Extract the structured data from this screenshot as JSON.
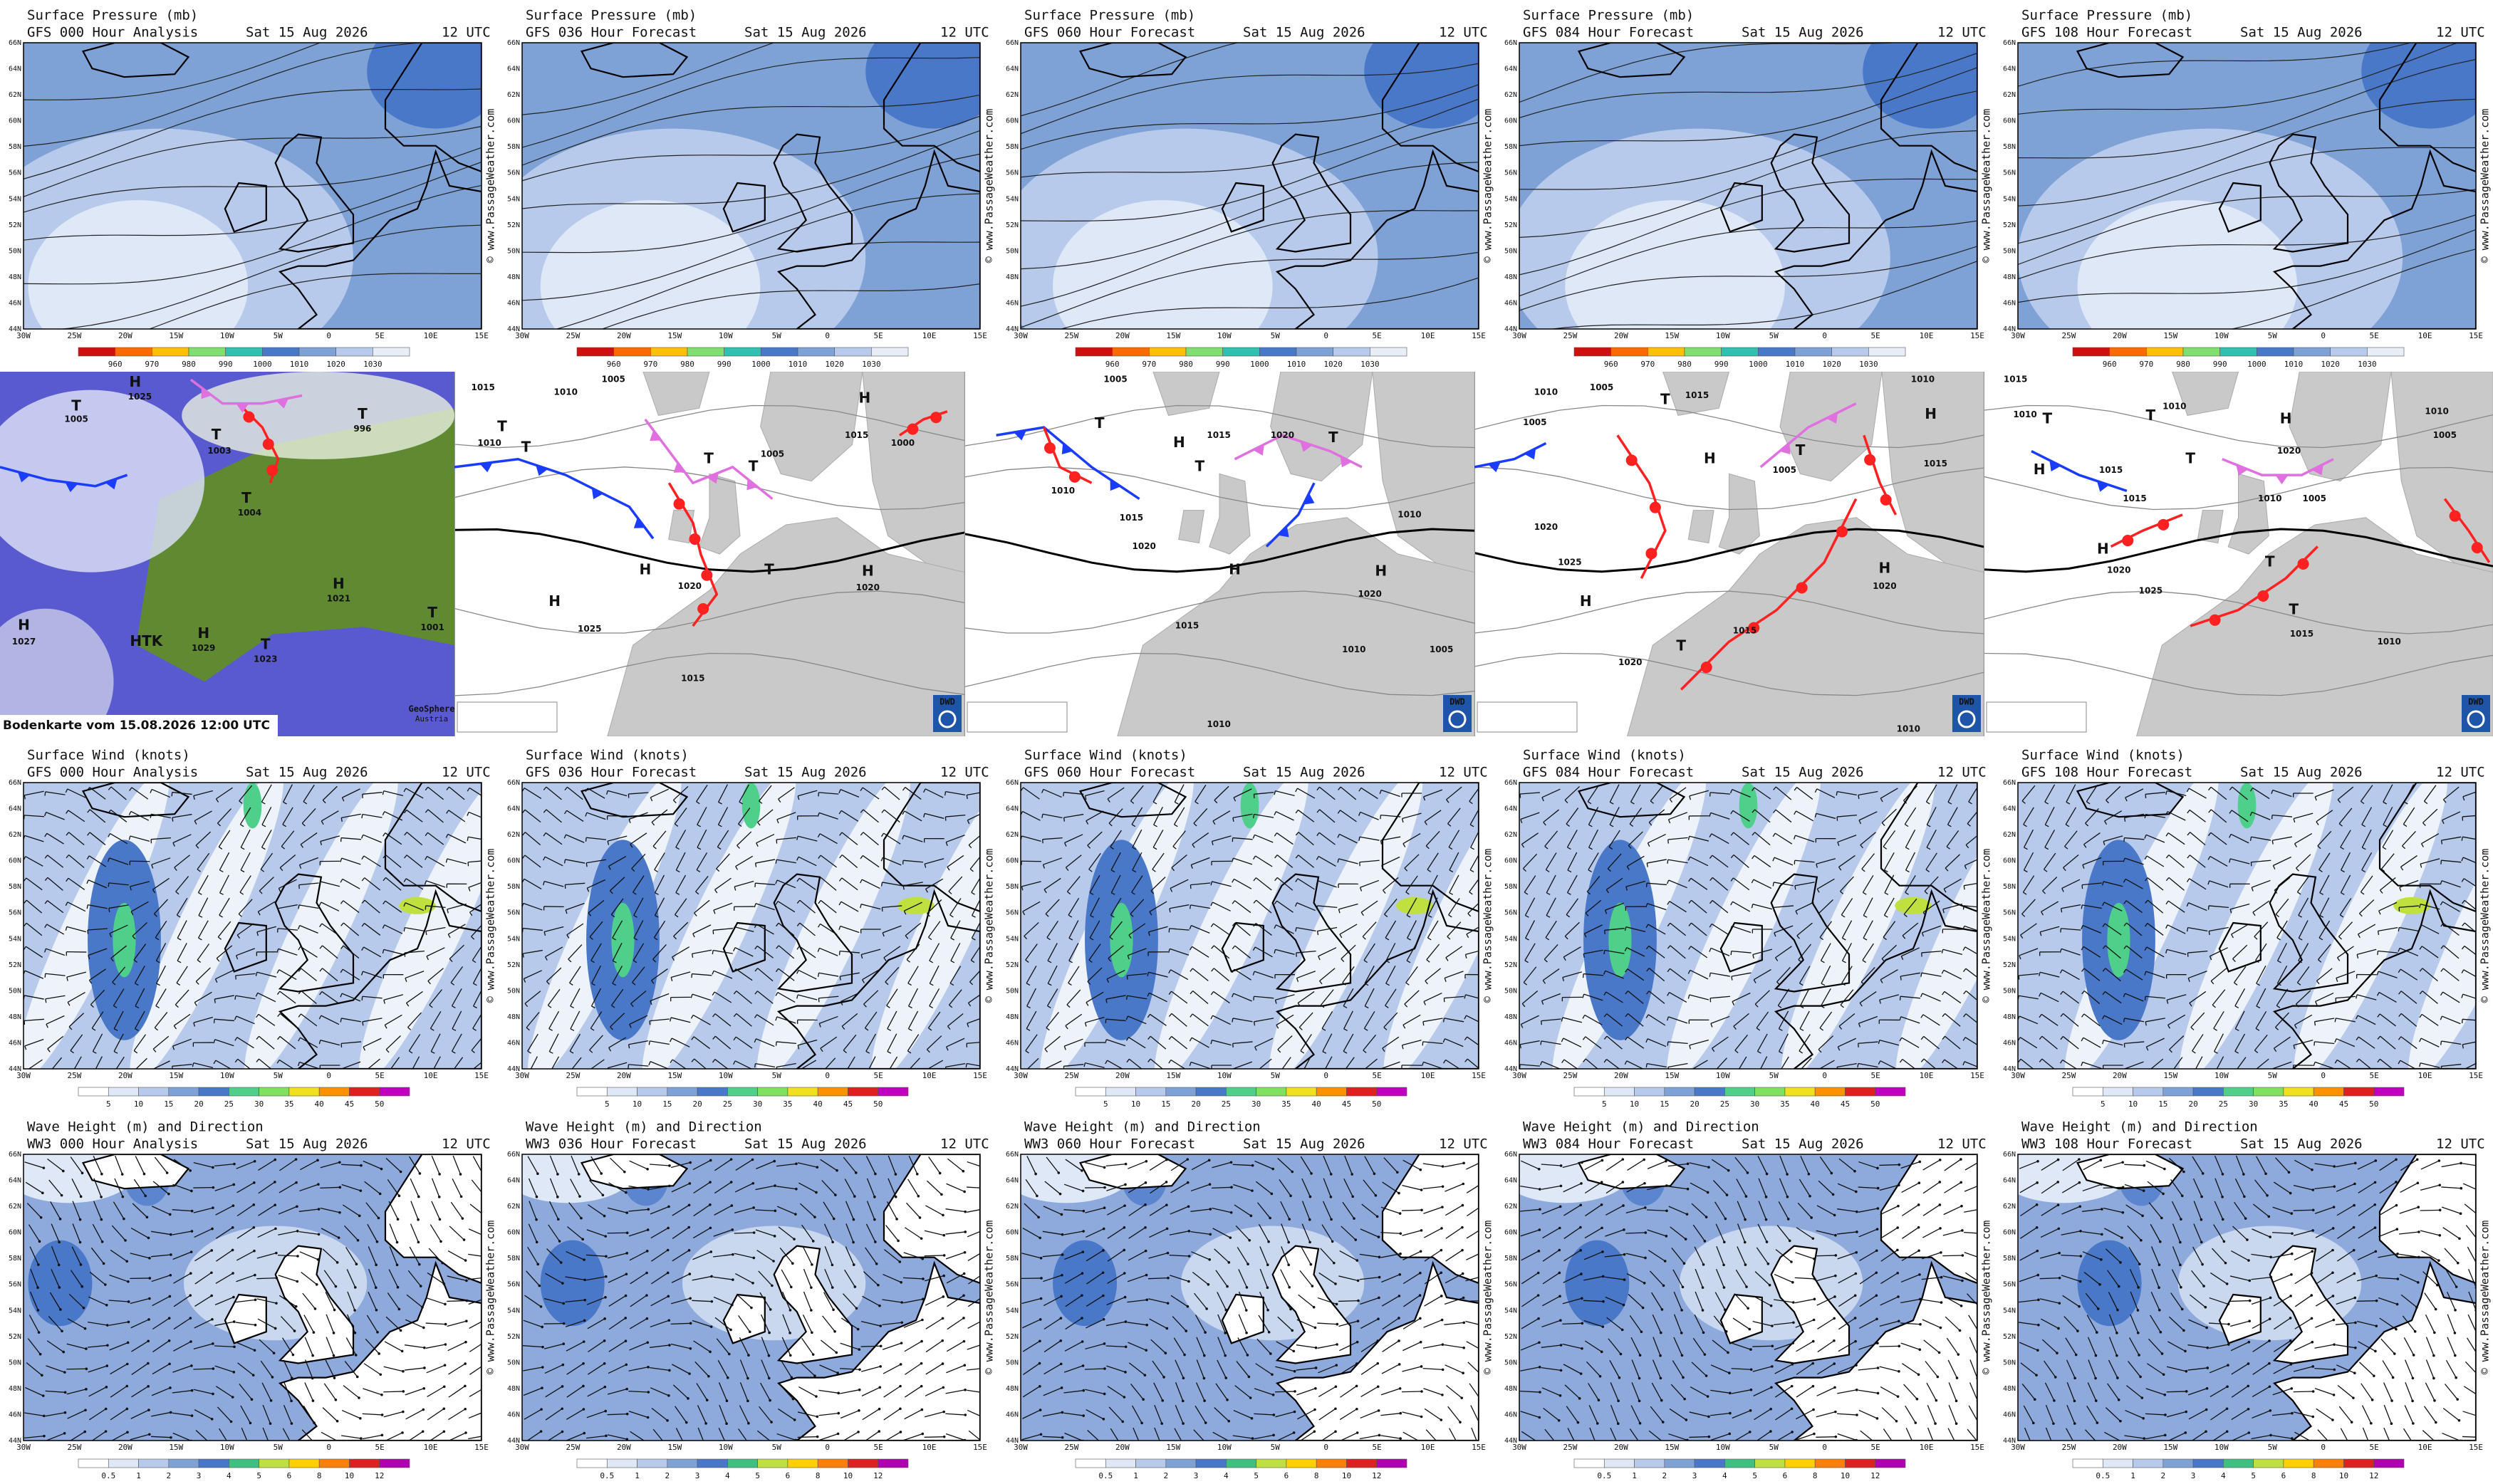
{
  "date": "Sat 15 Aug 2026",
  "time": "12 UTC",
  "watermark": "© www.PassageWeather.com",
  "lat_labels": [
    "66N",
    "64N",
    "62N",
    "60N",
    "58N",
    "56N",
    "54N",
    "52N",
    "50N",
    "48N",
    "46N",
    "44N"
  ],
  "lon_labels": [
    "30W",
    "25W",
    "20W",
    "15W",
    "10W",
    "5W",
    0,
    "5E",
    "10E",
    "15E"
  ],
  "map_rows": [
    {
      "title": "Surface Pressure (mb)",
      "panels": [
        {
          "model": "GFS 000 Hour Analysis"
        },
        {
          "model": "GFS 036 Hour Forecast"
        },
        {
          "model": "GFS 060 Hour Forecast"
        },
        {
          "model": "GFS 084 Hour Forecast"
        },
        {
          "model": "GFS 108 Hour Forecast"
        }
      ],
      "colorbar": [
        960,
        970,
        980,
        990,
        1000,
        1010,
        1020,
        1030
      ]
    },
    {
      "title": "Surface Wind (knots)",
      "panels": [
        {
          "model": "GFS 000 Hour Analysis"
        },
        {
          "model": "GFS 036 Hour Forecast"
        },
        {
          "model": "GFS 060 Hour Forecast"
        },
        {
          "model": "GFS 084 Hour Forecast"
        },
        {
          "model": "GFS 108 Hour Forecast"
        }
      ],
      "colorbar": [
        5,
        10,
        15,
        20,
        25,
        30,
        35,
        40,
        45,
        50
      ]
    },
    {
      "title": "Wave Height (m) and Direction",
      "panels": [
        {
          "model": "WW3 000 Hour Analysis"
        },
        {
          "model": "WW3 036 Hour Forecast"
        },
        {
          "model": "WW3 060 Hour Forecast"
        },
        {
          "model": "WW3 084 Hour Forecast"
        },
        {
          "model": "WW3 108 Hour Forecast"
        }
      ],
      "colorbar": [
        0.5,
        1,
        2,
        3,
        4,
        5,
        6,
        8,
        10,
        12
      ]
    }
  ],
  "synoptic": {
    "logo": "DWD",
    "caption": "Bodenkarte vom 15.08.2026 12:00 UTC",
    "credit": "GeoSphere",
    "credit_sub": "Austria",
    "panels": [
      {
        "labels": [
          "H",
          "1025",
          "T",
          "1005",
          "T",
          "1003",
          "T",
          "1004",
          "H",
          "1027",
          "HTK",
          "H",
          "1029",
          "T",
          "1023",
          "H",
          "1021",
          "T",
          "1001",
          "T",
          "996"
        ]
      },
      {
        "labels": [
          "1005",
          "1010",
          "1015",
          "T",
          "T",
          "1010",
          "T",
          "T",
          "1005",
          "H",
          "1015",
          "1000",
          "1020",
          "H",
          "H",
          "1025",
          "T",
          "H",
          "1020",
          "1015"
        ]
      },
      {
        "labels": [
          "1005",
          "T",
          "1010",
          "H",
          "1015",
          "T",
          "1020",
          "1015",
          "1020",
          "T",
          "1010",
          "H",
          "1020",
          "1015",
          "1010",
          "1005",
          "1010",
          "H"
        ]
      },
      {
        "labels": [
          "1005",
          "1010",
          "T",
          "1015",
          "1005",
          "H",
          "1005",
          "T",
          "1010",
          "H",
          "1015",
          "1020",
          "1025",
          "H",
          "1020",
          "T",
          "1015",
          "H",
          "1020",
          "1010"
        ]
      },
      {
        "labels": [
          "1015",
          "1010",
          "T",
          "T",
          "1010",
          "H",
          "1020",
          "T",
          "1015",
          "H",
          "1015",
          "1010",
          "1005",
          "1010",
          "1005",
          "H",
          "1020",
          "1025",
          "T",
          "T",
          "1015",
          "1010"
        ]
      }
    ]
  }
}
